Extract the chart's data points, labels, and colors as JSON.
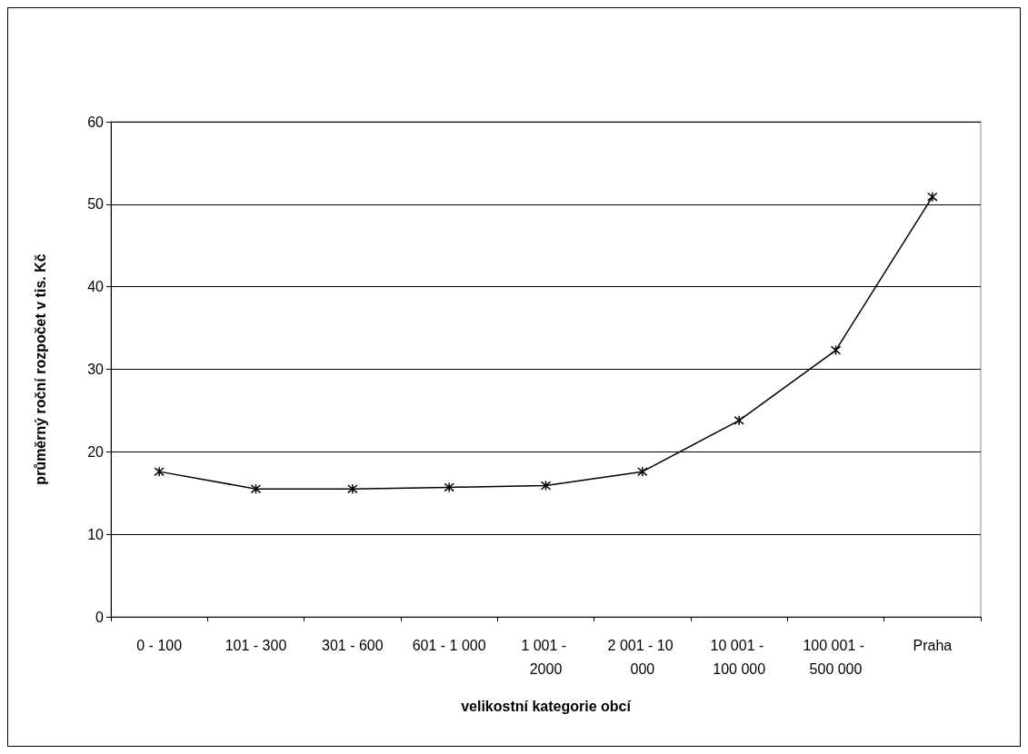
{
  "chart_data": {
    "type": "line",
    "xlabel": "velikostní kategorie obcí",
    "ylabel": "průměrný roční rozpočet v tis. Kč",
    "categories": [
      "0 - 100",
      "101 - 300",
      "301 - 600",
      "601 - 1 000",
      "1 001 - 2000",
      "2 001 - 10 000",
      "10 001 - 100 000",
      "100 001 - 500 000",
      "Praha"
    ],
    "series": [
      {
        "color": "#000000",
        "values": [
          17.6,
          15.5,
          15.5,
          15.7,
          15.9,
          17.6,
          23.8,
          32.3,
          50.9
        ]
      }
    ],
    "ylim": [
      0,
      60
    ],
    "yticks": [
      0,
      10,
      20,
      30,
      40,
      50,
      60
    ],
    "grid": "y",
    "marker": "cross",
    "line_style": "solid"
  }
}
